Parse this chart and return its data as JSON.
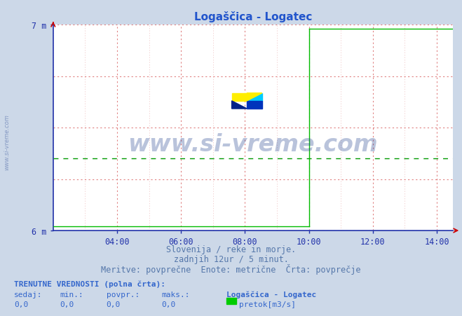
{
  "title": "Logaščica - Logatec",
  "bg_color": "#ccd8e8",
  "plot_bg_color": "#ffffff",
  "title_color": "#2255cc",
  "axis_color": "#2233aa",
  "grid_color_red": "#e08080",
  "grid_color_minor": "#eec0c0",
  "green_dashed_color": "#009900",
  "green_line_color": "#00bb00",
  "ylim": [
    6.0,
    7.0
  ],
  "yticks": [
    6.0,
    7.0
  ],
  "ytick_labels": [
    "6 m",
    "7 m"
  ],
  "xlim_hours": [
    2.0,
    14.5
  ],
  "xtick_hours": [
    4,
    6,
    8,
    10,
    12,
    14
  ],
  "xtick_labels": [
    "04:00",
    "06:00",
    "08:00",
    "10:00",
    "12:00",
    "14:00"
  ],
  "watermark_text": "www.si-vreme.com",
  "watermark_color": "#1a3a8a",
  "watermark_alpha": 0.3,
  "subtitle1": "Slovenija / reke in morje.",
  "subtitle2": "zadnjih 12ur / 5 minut.",
  "subtitle3": "Meritve: povprečne  Enote: metrične  Črta: povprečje",
  "subtitle_color": "#5577aa",
  "footer_bold": "TRENUTNE VREDNOSTI (polna črta):",
  "footer_row1": [
    "sedaj:",
    "min.:",
    "povpr.:",
    "maks.:"
  ],
  "footer_row2": [
    "0,0",
    "0,0",
    "0,0",
    "0,0"
  ],
  "legend_name": "Logaščica - Logatec",
  "legend_label": "pretok[m3/s]",
  "legend_color": "#00cc00",
  "step_x": 10.0,
  "step_y_before": 6.02,
  "step_y_top": 6.98,
  "green_dashed_y": 6.35,
  "font_color_table": "#3366cc",
  "side_watermark": "www.si-vreme.com"
}
